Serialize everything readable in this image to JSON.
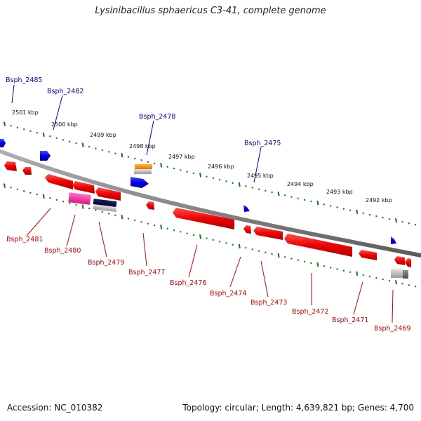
{
  "title": "Lysinibacillus sphaericus C3-41, complete genome",
  "footer": {
    "accession": "Accession: NC_010382",
    "summary": "Topology: circular; Length: 4,639,821 bp; Genes: 4,700"
  },
  "colors": {
    "backbone": "#888888",
    "tick": "#0a7a0a",
    "forward_gene": "#0000ee",
    "reverse_gene": "#ee0000",
    "forward_label": "#0000aa",
    "reverse_label": "#cc0000"
  },
  "scale_labels": [
    "2501 kbp",
    "2500 kbp",
    "2499 kbp",
    "2498 kbp",
    "2497 kbp",
    "2496 kbp",
    "2495 kbp",
    "2494 kbp",
    "2493 kbp",
    "2492 kbp"
  ],
  "forward_labels": [
    "Bsph_2485",
    "Bsph_2482",
    "Bsph_2478",
    "Bsph_2475"
  ],
  "reverse_labels": [
    "Bsph_2481",
    "Bsph_2480",
    "Bsph_2479",
    "Bsph_2477",
    "Bsph_2476",
    "Bsph_2474",
    "Bsph_2473",
    "Bsph_2472",
    "Bsph_2471",
    "Bsph_2469"
  ]
}
